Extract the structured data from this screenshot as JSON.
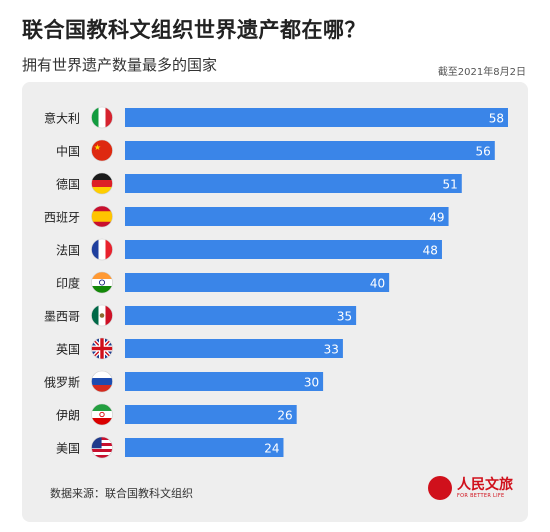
{
  "header": {
    "title": "联合国教科文组织世界遗产都在哪？",
    "subtitle": "拥有世界遗产数量最多的国家",
    "date": "截至2021年8月2日"
  },
  "footer": {
    "source": "数据来源：联合国教科文组织",
    "logo_main": "人民文旅",
    "logo_sub": "FOR BETTER LIFE"
  },
  "colors": {
    "bar": "#3a85e8",
    "card_bg": "#eeeeee",
    "logo": "#d0101b"
  },
  "chart_data": {
    "type": "bar",
    "orientation": "horizontal",
    "title": "联合国教科文组织世界遗产都在哪？",
    "subtitle": "拥有世界遗产数量最多的国家",
    "categories": [
      "意大利",
      "中国",
      "德国",
      "西班牙",
      "法国",
      "印度",
      "墨西哥",
      "英国",
      "俄罗斯",
      "伊朗",
      "美国"
    ],
    "values": [
      58,
      56,
      51,
      49,
      48,
      40,
      35,
      33,
      30,
      26,
      24
    ],
    "flags": [
      "italy-flag-icon",
      "china-flag-icon",
      "germany-flag-icon",
      "spain-flag-icon",
      "france-flag-icon",
      "india-flag-icon",
      "mexico-flag-icon",
      "uk-flag-icon",
      "russia-flag-icon",
      "iran-flag-icon",
      "usa-flag-icon"
    ],
    "xlim": [
      0,
      58
    ],
    "grid": false,
    "legend": "none"
  }
}
